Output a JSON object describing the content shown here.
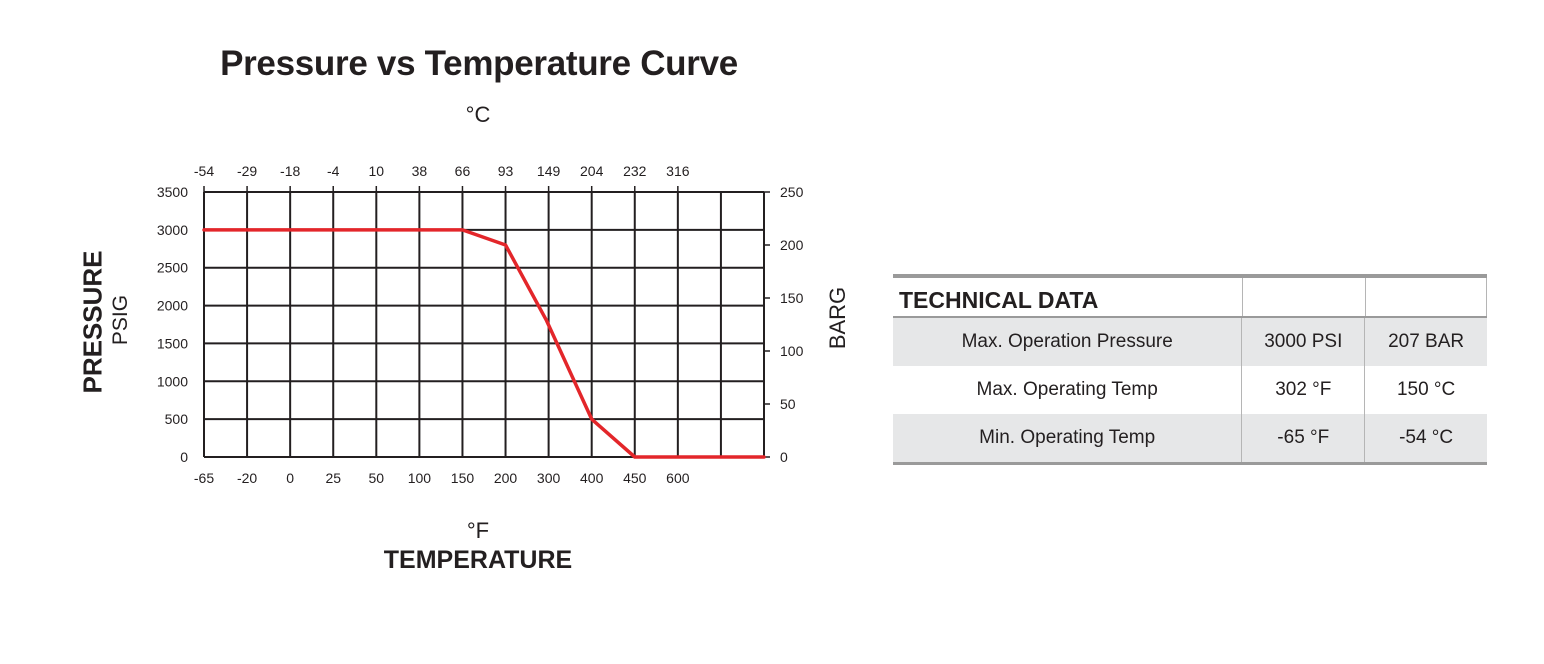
{
  "chart_data": {
    "type": "line",
    "title": "Pressure vs Temperature Curve",
    "xlabel": "TEMPERATURE",
    "x_unit_bottom": "°F",
    "x_unit_top": "°C",
    "ylabel": "PRESSURE",
    "ylabel_sub": "PSIG",
    "ylabel_right": "BARG",
    "x_ticks_bottom": [
      "-65",
      "-20",
      "0",
      "25",
      "50",
      "100",
      "150",
      "200",
      "300",
      "400",
      "450",
      "600"
    ],
    "x_ticks_top": [
      "-54",
      "-29",
      "-18",
      "-4",
      "10",
      "38",
      "66",
      "93",
      "149",
      "204",
      "232",
      "316"
    ],
    "y_ticks_left": [
      0,
      500,
      1000,
      1500,
      2000,
      2500,
      3000,
      3500
    ],
    "y_ticks_right": [
      0,
      50,
      100,
      150,
      200,
      250
    ],
    "ylim": [
      0,
      3500
    ],
    "ylim_right": [
      0,
      250
    ],
    "grid": true,
    "series": [
      {
        "color": "#e3262a",
        "x": [
          "-65",
          "-20",
          "0",
          "25",
          "50",
          "100",
          "150",
          "200",
          "300",
          "400",
          "450",
          "600",
          ""
        ],
        "values": [
          3000,
          3000,
          3000,
          3000,
          3000,
          3000,
          3000,
          2800,
          1800,
          500,
          0,
          0,
          0
        ]
      }
    ]
  },
  "technical_data": {
    "title": "TECHNICAL DATA",
    "rows": [
      {
        "label": "Max. Operation Pressure",
        "imperial": "3000 PSI",
        "metric": "207 BAR"
      },
      {
        "label": "Max. Operating Temp",
        "imperial": "302 °F",
        "metric": "150 °C"
      },
      {
        "label": "Min. Operating Temp",
        "imperial": "-65 °F",
        "metric": "-54 °C"
      }
    ]
  },
  "colors": {
    "curve": "#e3262a",
    "grid": "#231f20",
    "table_shade": "#e6e7e8",
    "table_rule": "#9a9a9a"
  }
}
